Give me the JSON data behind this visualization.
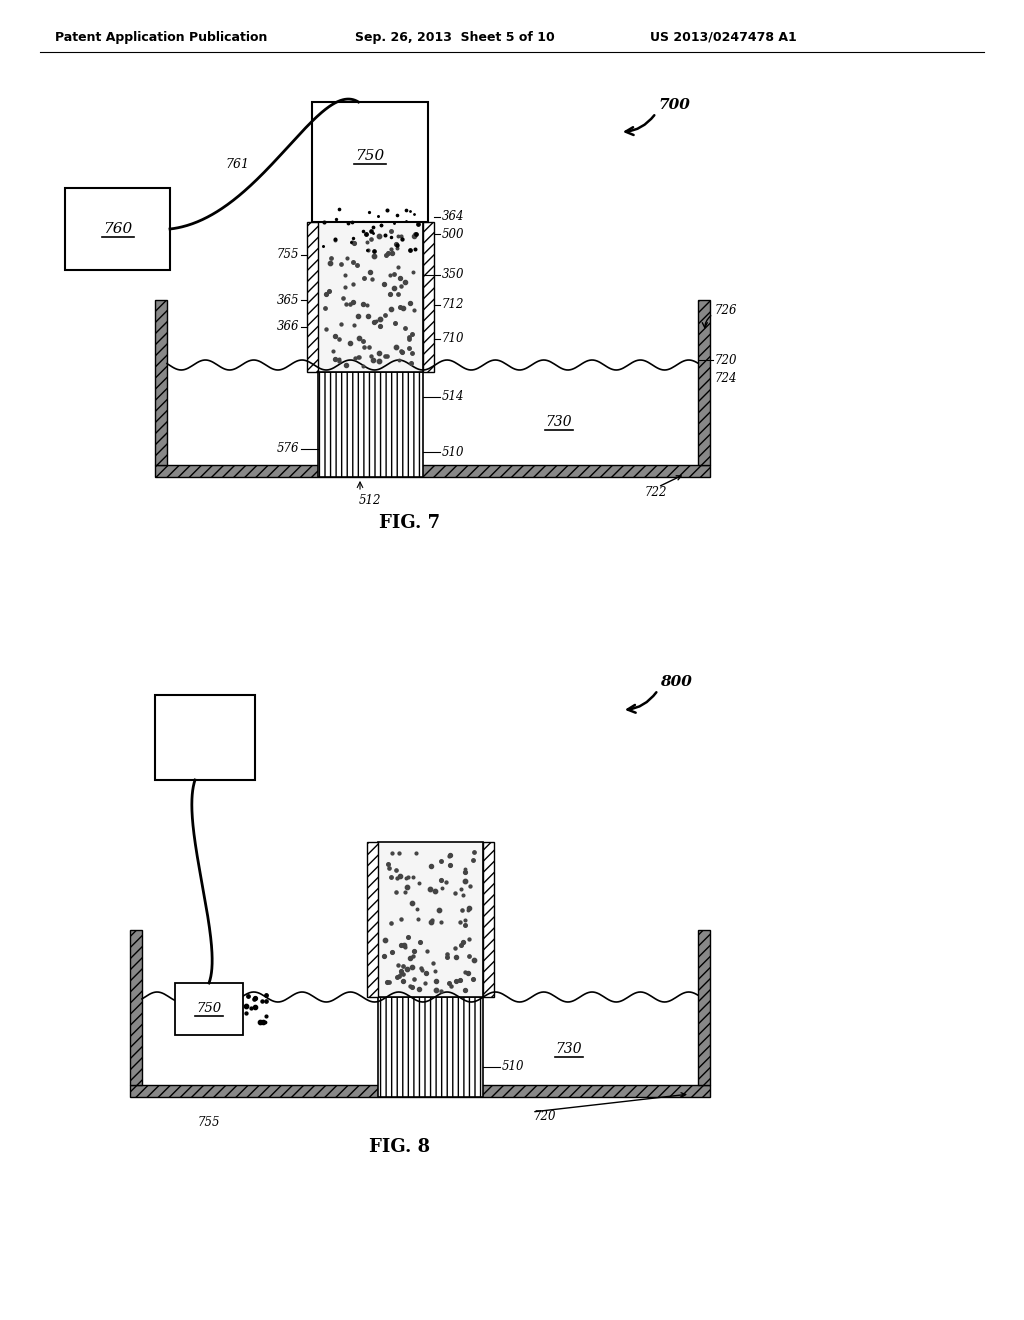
{
  "bg_color": "#ffffff",
  "header_left": "Patent Application Publication",
  "header_center": "Sep. 26, 2013  Sheet 5 of 10",
  "header_right": "US 2013/0247478 A1",
  "fig7_label": "FIG. 7",
  "fig8_label": "FIG. 8"
}
